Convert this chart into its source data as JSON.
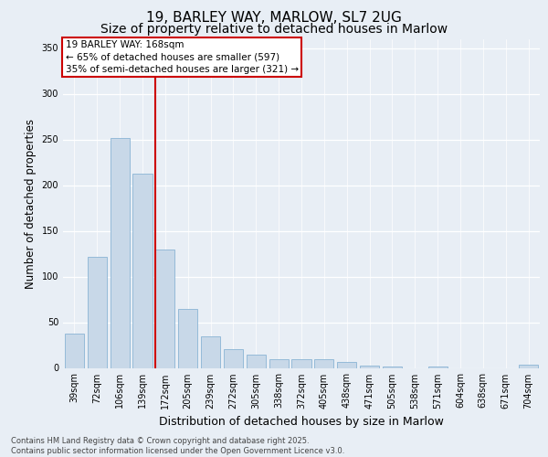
{
  "title1": "19, BARLEY WAY, MARLOW, SL7 2UG",
  "title2": "Size of property relative to detached houses in Marlow",
  "xlabel": "Distribution of detached houses by size in Marlow",
  "ylabel": "Number of detached properties",
  "categories": [
    "39sqm",
    "72sqm",
    "106sqm",
    "139sqm",
    "172sqm",
    "205sqm",
    "239sqm",
    "272sqm",
    "305sqm",
    "338sqm",
    "372sqm",
    "405sqm",
    "438sqm",
    "471sqm",
    "505sqm",
    "538sqm",
    "571sqm",
    "604sqm",
    "638sqm",
    "671sqm",
    "704sqm"
  ],
  "values": [
    38,
    122,
    252,
    213,
    130,
    65,
    35,
    21,
    15,
    10,
    10,
    10,
    7,
    3,
    2,
    0,
    2,
    0,
    0,
    0,
    4
  ],
  "bar_color": "#c8d8e8",
  "bar_edge_color": "#8ab4d4",
  "vline_color": "#cc0000",
  "vline_x_index": 3.57,
  "annotation_text": "19 BARLEY WAY: 168sqm\n← 65% of detached houses are smaller (597)\n35% of semi-detached houses are larger (321) →",
  "annotation_box_color": "#cc0000",
  "background_color": "#e8eef5",
  "ylim": [
    0,
    360
  ],
  "yticks": [
    0,
    50,
    100,
    150,
    200,
    250,
    300,
    350
  ],
  "footer": "Contains HM Land Registry data © Crown copyright and database right 2025.\nContains public sector information licensed under the Open Government Licence v3.0.",
  "title_fontsize": 11,
  "subtitle_fontsize": 10,
  "tick_fontsize": 7,
  "ylabel_fontsize": 8.5,
  "xlabel_fontsize": 9,
  "ann_fontsize": 7.5,
  "footer_fontsize": 6
}
